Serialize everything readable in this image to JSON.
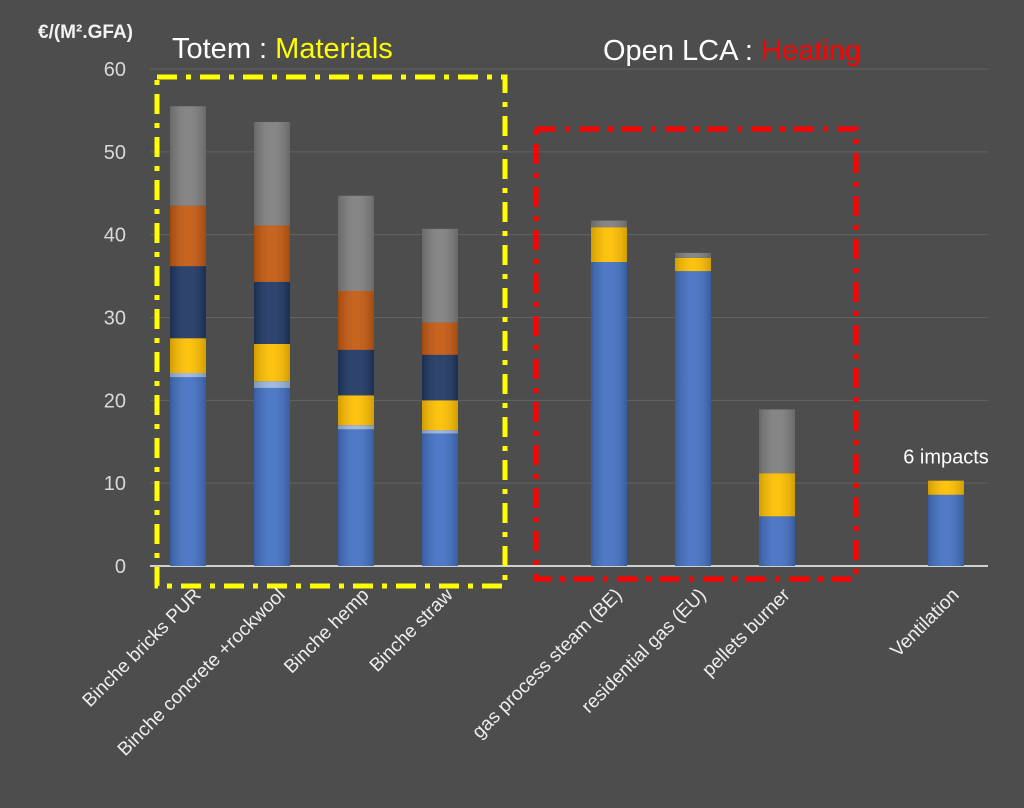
{
  "chart_data": {
    "type": "bar",
    "stacked": true,
    "ylabel": "€/(M².GFA)",
    "ylim": [
      0,
      60
    ],
    "yticks": [
      0,
      10,
      20,
      30,
      40,
      50,
      60
    ],
    "grid": true,
    "categories": [
      "Binche bricks PUR",
      "Binche concrete +rockwool",
      "Binche hemp",
      "Binche straw",
      "gas process steam (BE)",
      "residential gas (EU)",
      "pellets burner",
      "Ventilation"
    ],
    "series": [
      {
        "color": "#4472c4",
        "values": [
          22.8,
          21.5,
          16.5,
          16.0,
          36.7,
          35.6,
          6.0,
          8.6
        ]
      },
      {
        "color": "#9bb7e0",
        "values": [
          0.5,
          0.8,
          0.5,
          0.4,
          0,
          0,
          0,
          0
        ]
      },
      {
        "color": "#ffc000",
        "values": [
          4.2,
          4.5,
          3.6,
          3.6,
          4.2,
          1.6,
          5.2,
          1.7
        ]
      },
      {
        "color": "#203864",
        "values": [
          8.7,
          7.5,
          5.5,
          5.5,
          0,
          0,
          0,
          0
        ]
      },
      {
        "color": "#c55a11",
        "values": [
          7.3,
          6.8,
          7.1,
          3.9,
          0,
          0,
          0,
          0
        ]
      },
      {
        "color": "#7f7f7f",
        "values": [
          12.0,
          12.5,
          11.5,
          11.3,
          0.8,
          0.6,
          7.7,
          0
        ]
      }
    ],
    "groups": [
      {
        "label": "Totem : ",
        "highlight": "Materials",
        "highlight_color": "#ffff00",
        "border_color": "#ffff00"
      },
      {
        "label": "Open LCA : ",
        "highlight": "Heating",
        "highlight_color": "#ff0000",
        "border_color": "#ff0000"
      }
    ],
    "annotations": [
      {
        "text": "6 impacts",
        "category": "Ventilation"
      }
    ]
  }
}
